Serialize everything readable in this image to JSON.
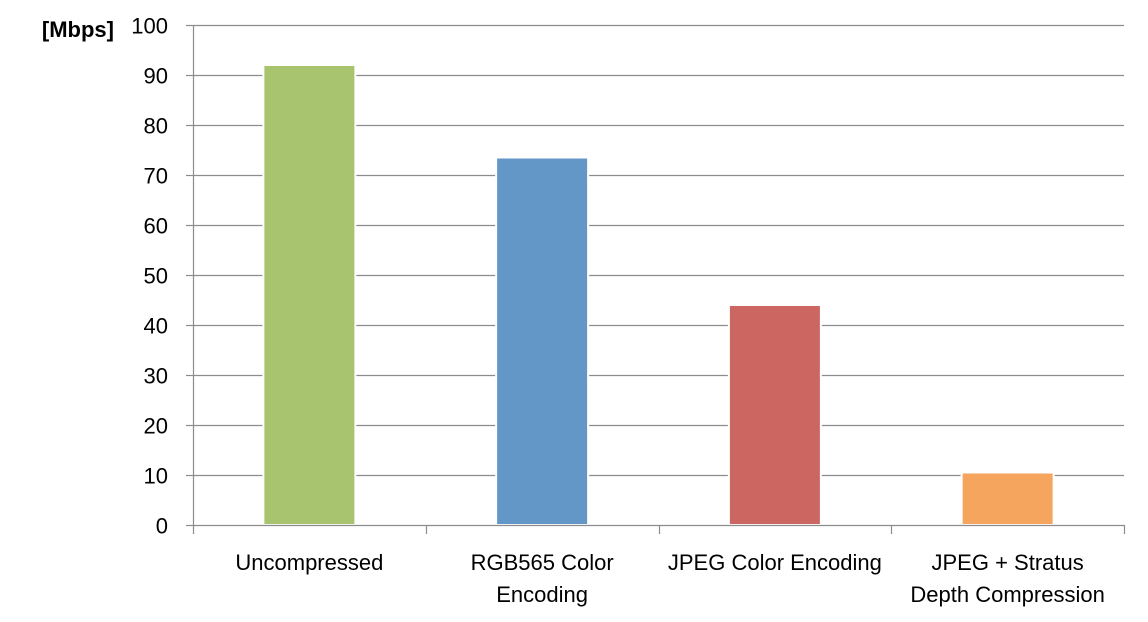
{
  "chart_data": {
    "type": "bar",
    "title": "",
    "xlabel": "",
    "ylabel": "[Mbps]",
    "ylim": [
      0,
      100
    ],
    "yticks": [
      0,
      10,
      20,
      30,
      40,
      50,
      60,
      70,
      80,
      90,
      100
    ],
    "grid": true,
    "legend": "none",
    "categories": [
      [
        "Uncompressed"
      ],
      [
        "RGB565 Color",
        "Encoding"
      ],
      [
        "JPEG Color Encoding"
      ],
      [
        "JPEG + Stratus",
        "Depth Compression"
      ]
    ],
    "values": [
      92,
      73.5,
      44,
      10.5
    ],
    "colors": [
      "#a9c46e",
      "#6297c7",
      "#cc6661",
      "#f5a55d"
    ]
  }
}
